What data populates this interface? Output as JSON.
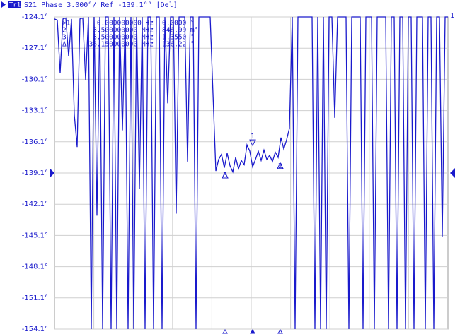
{
  "chart_data": {
    "type": "line",
    "trace_badge": "Tr1",
    "title": "S21 Phase 3.000°/ Ref -139.1°° [Del]",
    "trace_label": "1",
    "color": "#1a1acc",
    "grid": true,
    "ylim": [
      -154.1,
      -124.1
    ],
    "yticks": [
      {
        "value": -124.1,
        "label": "-124.1°"
      },
      {
        "value": -127.1,
        "label": "-127.1°"
      },
      {
        "value": -130.1,
        "label": "-130.1°"
      },
      {
        "value": -133.1,
        "label": "-133.1°"
      },
      {
        "value": -136.1,
        "label": "-136.1°"
      },
      {
        "value": -139.1,
        "label": "-139.1°"
      },
      {
        "value": -142.1,
        "label": "-142.1°"
      },
      {
        "value": -145.1,
        "label": "-145.1°"
      },
      {
        "value": -148.1,
        "label": "-148.1°"
      },
      {
        "value": -151.1,
        "label": "-151.1°"
      },
      {
        "value": -154.1,
        "label": "-154.1°"
      }
    ],
    "ref_value": -139.1,
    "values": [
      -124.3,
      -124.4,
      -129.5,
      -124.3,
      -124.2,
      -127.9,
      -124.3,
      -133.5,
      -136.6,
      -124.3,
      -124.2,
      -130.2,
      -124.1,
      -154.1,
      -124.1,
      -143.2,
      -124.1,
      -154.1,
      -124.1,
      -124.1,
      -154.1,
      -124.1,
      -154.1,
      -124.1,
      -135.0,
      -124.1,
      -154.1,
      -124.1,
      -154.1,
      -124.1,
      -140.6,
      -124.1,
      -154.1,
      -124.1,
      -124.1,
      -154.1,
      -124.1,
      -124.1,
      -154.1,
      -124.1,
      -132.4,
      -124.1,
      -124.1,
      -143.0,
      -124.1,
      -124.1,
      -124.1,
      -138.0,
      -124.1,
      -124.1,
      -154.1,
      -124.1,
      -124.1,
      -124.1,
      -124.1,
      -124.1,
      -131.5,
      -138.9,
      -137.8,
      -137.3,
      -138.6,
      -137.2,
      -138.4,
      -139.0,
      -137.6,
      -138.7,
      -137.9,
      -138.3,
      -136.4,
      -137.0,
      -138.5,
      -137.8,
      -137.0,
      -137.9,
      -136.9,
      -137.8,
      -137.4,
      -138.0,
      -137.1,
      -137.6,
      -135.7,
      -136.8,
      -135.9,
      -134.8,
      -124.1,
      -154.1,
      -124.1,
      -124.1,
      -124.1,
      -124.1,
      -124.1,
      -124.1,
      -154.1,
      -124.1,
      -154.1,
      -124.1,
      -154.1,
      -124.1,
      -124.1,
      -133.8,
      -124.1,
      -124.1,
      -124.1,
      -124.1,
      -154.1,
      -124.1,
      -124.1,
      -124.1,
      -124.1,
      -154.1,
      -124.1,
      -124.1,
      -124.1,
      -154.1,
      -124.1,
      -124.1,
      -124.1,
      -124.1,
      -154.1,
      -124.1,
      -124.1,
      -154.1,
      -124.1,
      -124.1,
      -154.1,
      -124.1,
      -124.1,
      -154.1,
      -124.1,
      -124.1,
      -124.1,
      -154.1,
      -124.1,
      -124.1,
      -154.1,
      -124.1,
      -124.1,
      -145.2,
      -124.1,
      -124.1
    ],
    "markers": [
      {
        "label": "1",
        "value": -136.6
      },
      {
        "label": "2",
        "value": -138.0
      },
      {
        "label": "3",
        "value": -138.9
      }
    ],
    "marker_table": [
      [
        ">1",
        "0.000000000 Hz",
        "0.0000 °"
      ],
      [
        "2",
        "3.500000000 MHz",
        "846.99 m°"
      ],
      [
        "3",
        "3.500000000 MHz",
        "1.3550 °"
      ],
      [
        "Δ",
        "36.150000000 MHz",
        "136.22 °"
      ]
    ]
  }
}
